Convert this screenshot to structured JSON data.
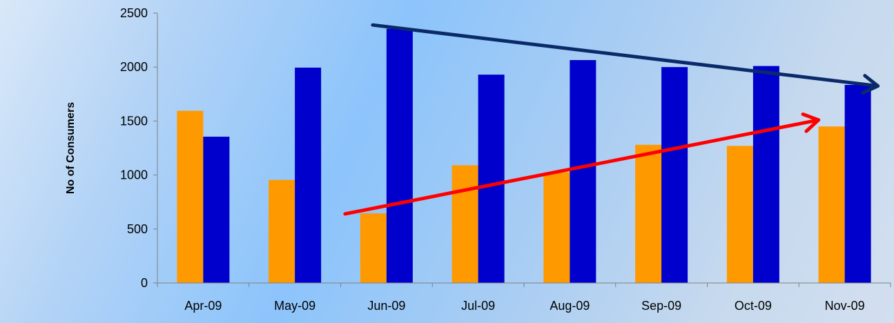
{
  "chart_data": {
    "type": "bar",
    "title": "",
    "xlabel": "",
    "ylabel": "No of Consumers",
    "ylim": [
      0,
      2500
    ],
    "yticks": [
      0,
      500,
      1000,
      1500,
      2000,
      2500
    ],
    "categories": [
      "Apr-09",
      "May-09",
      "Jun-09",
      "Jul-09",
      "Aug-09",
      "Sep-09",
      "Oct-09",
      "Nov-09"
    ],
    "series": [
      {
        "color": "#ff9900",
        "values": [
          1595,
          955,
          645,
          1090,
          1025,
          1280,
          1270,
          1450
        ]
      },
      {
        "color": "#0000cc",
        "values": [
          1355,
          1995,
          2355,
          1930,
          2065,
          2000,
          2010,
          1835
        ]
      }
    ],
    "annotations": [
      {
        "type": "trend-arrow",
        "color": "#ff0000",
        "from": {
          "category": "Jun-09",
          "y": 640
        },
        "to": {
          "category": "Nov-09",
          "y": 1510
        }
      },
      {
        "type": "trend-arrow",
        "color": "#0a2a6a",
        "from": {
          "category": "Jun-09",
          "y": 2390
        },
        "to": {
          "category": "Nov-09",
          "y": 1825
        }
      }
    ],
    "grid": false,
    "legend": "none"
  }
}
